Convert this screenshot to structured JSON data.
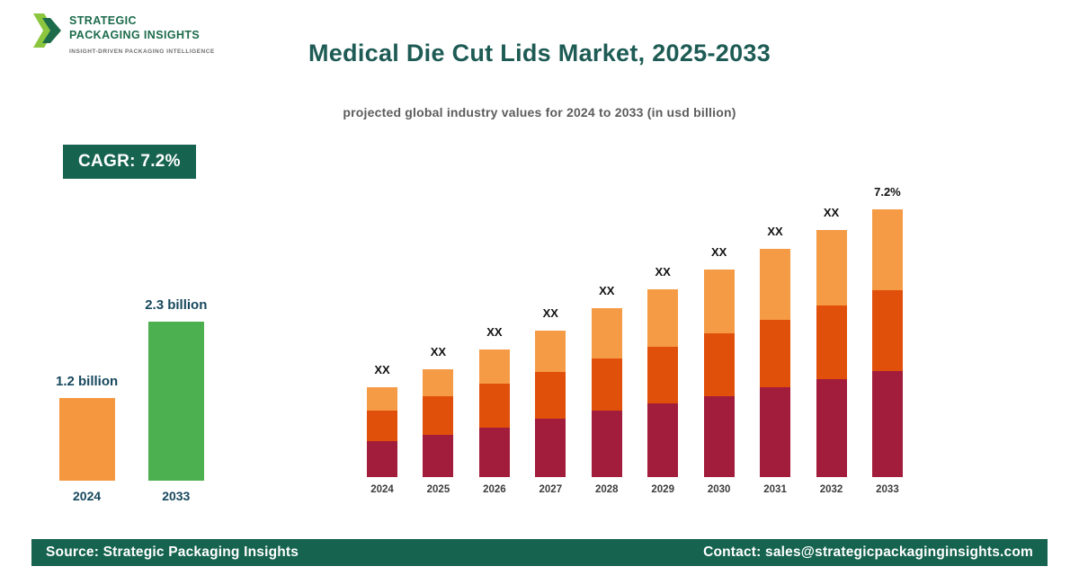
{
  "logo": {
    "name_line1": "STRATEGIC",
    "name_line2": "PACKAGING INSIGHTS",
    "tagline": "INSIGHT-DRIVEN PACKAGING INTELLIGENCE"
  },
  "header": {
    "title": "Medical Die Cut Lids Market, 2025-2033",
    "subtitle": "projected global industry values for 2024 to 2033 (in usd billion)"
  },
  "cagr_badge": {
    "label": "CAGR: 7.2%"
  },
  "footer": {
    "source": "Source: Strategic Packaging Insights",
    "contact": "Contact: sales@strategicpackaginginsights.com"
  },
  "colors": {
    "brand_green": "#16634F",
    "title_teal": "#1D5B54",
    "label_teal": "#17485E",
    "orange": "#F5973F",
    "green_bar": "#4CAF50",
    "maroon": "#A21C3C",
    "dark_orange": "#E1500A",
    "light_orange": "#F59B45"
  },
  "chart_data": [
    {
      "type": "bar",
      "categories": [
        "2024",
        "2033"
      ],
      "values": [
        1.2,
        2.3
      ],
      "value_labels": [
        "1.2 billion",
        "2.3 billion"
      ],
      "bar_colors": [
        "#F5973F",
        "#4CAF50"
      ],
      "ylabel": "usd billion",
      "grid": false,
      "legend": false
    },
    {
      "type": "stacked-bar",
      "categories": [
        "2024",
        "2025",
        "2026",
        "2027",
        "2028",
        "2029",
        "2030",
        "2031",
        "2032",
        "2033"
      ],
      "bar_labels": [
        "XX",
        "XX",
        "XX",
        "XX",
        "XX",
        "XX",
        "XX",
        "XX",
        "XX",
        "7.2%"
      ],
      "series": [
        {
          "name": "segment-bottom",
          "color": "#A21C3C",
          "values": [
            40,
            47,
            55,
            65,
            74,
            82,
            90,
            100,
            109,
            118
          ]
        },
        {
          "name": "segment-middle",
          "color": "#E1500A",
          "values": [
            34,
            43,
            49,
            52,
            58,
            63,
            70,
            75,
            82,
            90
          ]
        },
        {
          "name": "segment-top",
          "color": "#F59B45",
          "values": [
            26,
            30,
            38,
            46,
            56,
            64,
            71,
            79,
            84,
            90
          ]
        }
      ],
      "values_unit": "relative (data labels shown as XX)",
      "grid": false,
      "legend": false
    }
  ]
}
